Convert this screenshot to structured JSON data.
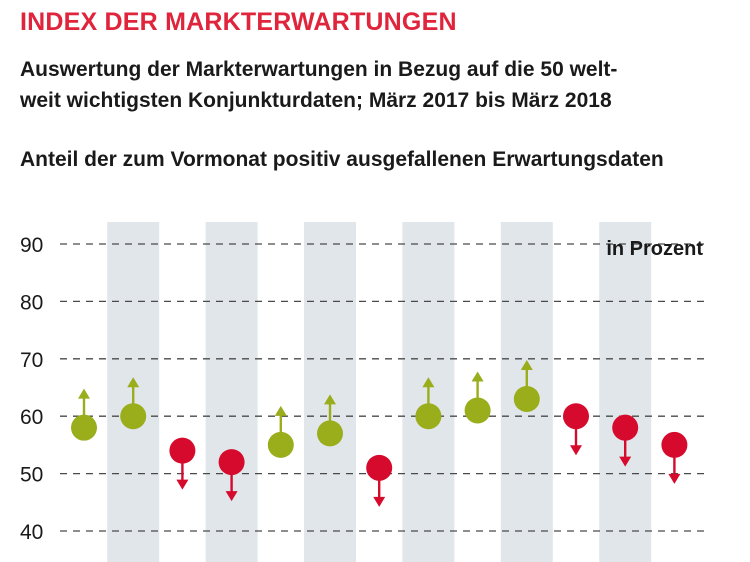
{
  "header": {
    "title": "INDEX DER MARKTERWARTUNGEN",
    "subtitle_line1": "Auswertung der Markterwartungen in Bezug auf die 50 welt-",
    "subtitle_line2": "weit wichtigsten Konjunkturdaten; März 2017 bis März 2018",
    "caption": "Anteil der zum Vormonat positiv ausgefallenen Erwartungsdaten"
  },
  "colors": {
    "title": "#e0243b",
    "up": "#9aad1b",
    "down": "#d50a2c",
    "band": "#e1e6ea",
    "grid": "#4a4a4a"
  },
  "chart_data": {
    "type": "scatter",
    "unit_label": "in Prozent",
    "ylim": [
      40,
      90
    ],
    "yticks": [
      90,
      80,
      70,
      60,
      50,
      40
    ],
    "grid": true,
    "series": [
      {
        "values": [
          58,
          60,
          54,
          52,
          55,
          57,
          51,
          60,
          61,
          63,
          60,
          58,
          55
        ],
        "direction": [
          "up",
          "up",
          "down",
          "down",
          "up",
          "up",
          "down",
          "up",
          "up",
          "up",
          "down",
          "down",
          "down"
        ]
      }
    ]
  }
}
